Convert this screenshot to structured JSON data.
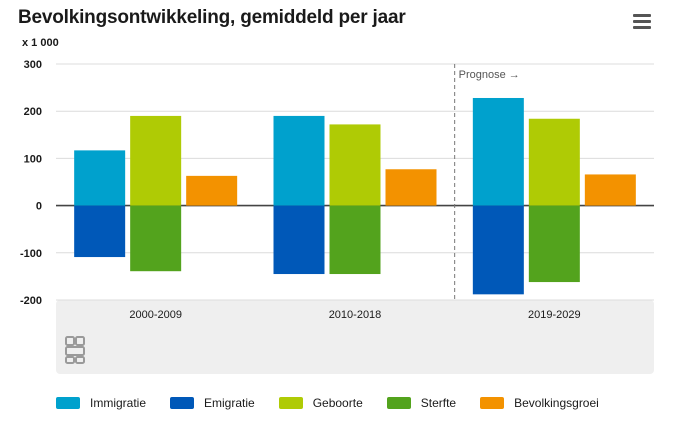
{
  "header": {
    "title": "Bevolkingsontwikkeling, gemiddeld per jaar",
    "menu_icon": "hamburger-menu-icon"
  },
  "chart_data": {
    "type": "bar",
    "title": "Bevolkingsontwikkeling, gemiddeld per jaar",
    "unit_label": "x 1 000",
    "categories": [
      "2000-2009",
      "2010-2018",
      "2019-2029"
    ],
    "series": [
      {
        "name": "Immigratie",
        "color": "#00a1cd",
        "values": [
          117,
          190,
          228
        ]
      },
      {
        "name": "Emigratie",
        "color": "#0058b8",
        "values": [
          -109,
          -145,
          -188
        ]
      },
      {
        "name": "Geboorte",
        "color": "#afcb05",
        "values": [
          190,
          172,
          184
        ]
      },
      {
        "name": "Sterfte",
        "color": "#53a31d",
        "values": [
          -139,
          -145,
          -162
        ]
      },
      {
        "name": "Bevolkingsgroei",
        "color": "#f39200",
        "values": [
          63,
          77,
          66
        ]
      }
    ],
    "ylim": [
      -200,
      300
    ],
    "yticks": [
      -200,
      -100,
      0,
      100,
      200,
      300
    ],
    "yticks_labels": [
      "-200",
      "-100",
      "0",
      "100",
      "200",
      "300"
    ],
    "grid": true,
    "annotation": {
      "text": "Prognose →",
      "after_category": 1
    },
    "legend_position": "bottom",
    "logo": "cbs-logo-icon"
  }
}
